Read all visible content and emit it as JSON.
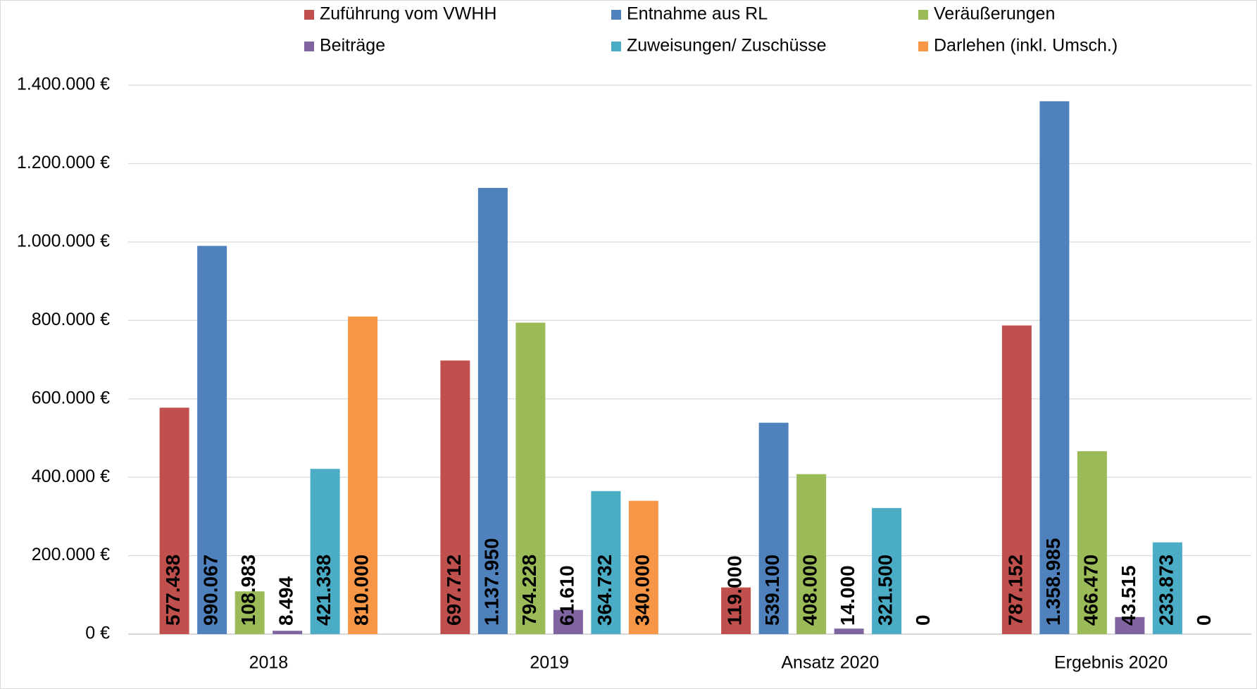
{
  "chart_data": {
    "type": "bar",
    "categories": [
      "2018",
      "2019",
      "Ansatz 2020",
      "Ergebnis 2020"
    ],
    "series": [
      {
        "name": "Zuführung vom VWHH",
        "color": "#c0504d",
        "label_color": "#000000",
        "values": [
          577438,
          697712,
          119000,
          787152
        ],
        "value_labels": [
          "577.438",
          "697.712",
          "119.000",
          "787.152"
        ]
      },
      {
        "name": "Entnahme aus RL",
        "color": "#4f81bd",
        "label_color": "#ffffff",
        "values": [
          990067,
          1137950,
          539100,
          1358985
        ],
        "value_labels": [
          "990.067",
          "1.137.950",
          "539.100",
          "1.358.985"
        ]
      },
      {
        "name": "Veräußerungen",
        "color": "#9bbb59",
        "label_color": "#000000",
        "values": [
          108983,
          794228,
          408000,
          466470
        ],
        "value_labels": [
          "108.983",
          "794.228",
          "408.000",
          "466.470"
        ]
      },
      {
        "name": "Beiträge",
        "color": "#8064a2",
        "label_color": "#000000",
        "values": [
          8494,
          61610,
          14000,
          43515
        ],
        "value_labels": [
          "8.494",
          "61.610",
          "14.000",
          "43.515"
        ]
      },
      {
        "name": "Zuweisungen/ Zuschüsse",
        "color": "#4bacc6",
        "label_color": "#000000",
        "values": [
          421338,
          364732,
          321500,
          233873
        ],
        "value_labels": [
          "421.338",
          "364.732",
          "321.500",
          "233.873"
        ]
      },
      {
        "name": "Darlehen (inkl. Umsch.)",
        "color": "#f79646",
        "label_color": "#000000",
        "values": [
          810000,
          340000,
          0,
          0
        ],
        "value_labels": [
          "810.000",
          "340.000",
          "0",
          "0"
        ]
      }
    ],
    "ylim": [
      0,
      1400000
    ],
    "yticks": [
      {
        "value": 0,
        "label": "0 €"
      },
      {
        "value": 200000,
        "label": "200.000 €"
      },
      {
        "value": 400000,
        "label": "400.000 €"
      },
      {
        "value": 600000,
        "label": "600.000 €"
      },
      {
        "value": 800000,
        "label": "800.000 €"
      },
      {
        "value": 1000000,
        "label": "1.000.000 €"
      },
      {
        "value": 1200000,
        "label": "1.200.000 €"
      },
      {
        "value": 1400000,
        "label": "1.400.000 €"
      }
    ],
    "grid": true,
    "legend": "top"
  }
}
